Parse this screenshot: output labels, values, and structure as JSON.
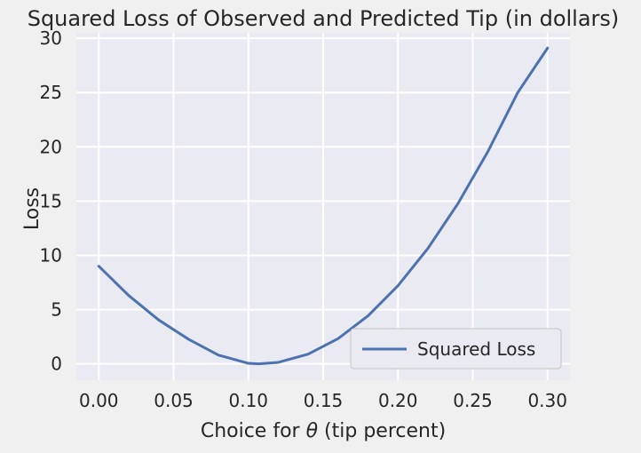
{
  "chart_data": {
    "type": "line",
    "title": "Squared Loss of Observed and Predicted Tip (in dollars)",
    "xlabel_prefix": "Choice for ",
    "xlabel_symbol": "θ",
    "xlabel_suffix": " (tip percent)",
    "ylabel": "Loss",
    "xlim": [
      -0.015,
      0.315
    ],
    "ylim": [
      -1.5,
      30.5
    ],
    "x_ticks": [
      0.0,
      0.05,
      0.1,
      0.15,
      0.2,
      0.25,
      0.3
    ],
    "x_tick_labels": [
      "0.00",
      "0.05",
      "0.10",
      "0.15",
      "0.20",
      "0.25",
      "0.30"
    ],
    "y_ticks": [
      0,
      5,
      10,
      15,
      20,
      25,
      30
    ],
    "y_tick_labels": [
      "0",
      "5",
      "10",
      "15",
      "20",
      "25",
      "30"
    ],
    "grid": true,
    "legend_position": "lower-right",
    "background_color": "#eaeaf2",
    "grid_color": "#ffffff",
    "series": [
      {
        "name": "Squared Loss",
        "color": "#4c72b0",
        "x": [
          0.0,
          0.02,
          0.04,
          0.06,
          0.08,
          0.1,
          0.107,
          0.12,
          0.14,
          0.16,
          0.18,
          0.2,
          0.22,
          0.24,
          0.26,
          0.28,
          0.3
        ],
        "y": [
          9.0,
          6.3,
          4.05,
          2.27,
          0.81,
          0.05,
          0.0,
          0.14,
          0.9,
          2.33,
          4.43,
          7.2,
          10.64,
          14.75,
          19.53,
          24.98,
          29.1
        ]
      }
    ]
  }
}
